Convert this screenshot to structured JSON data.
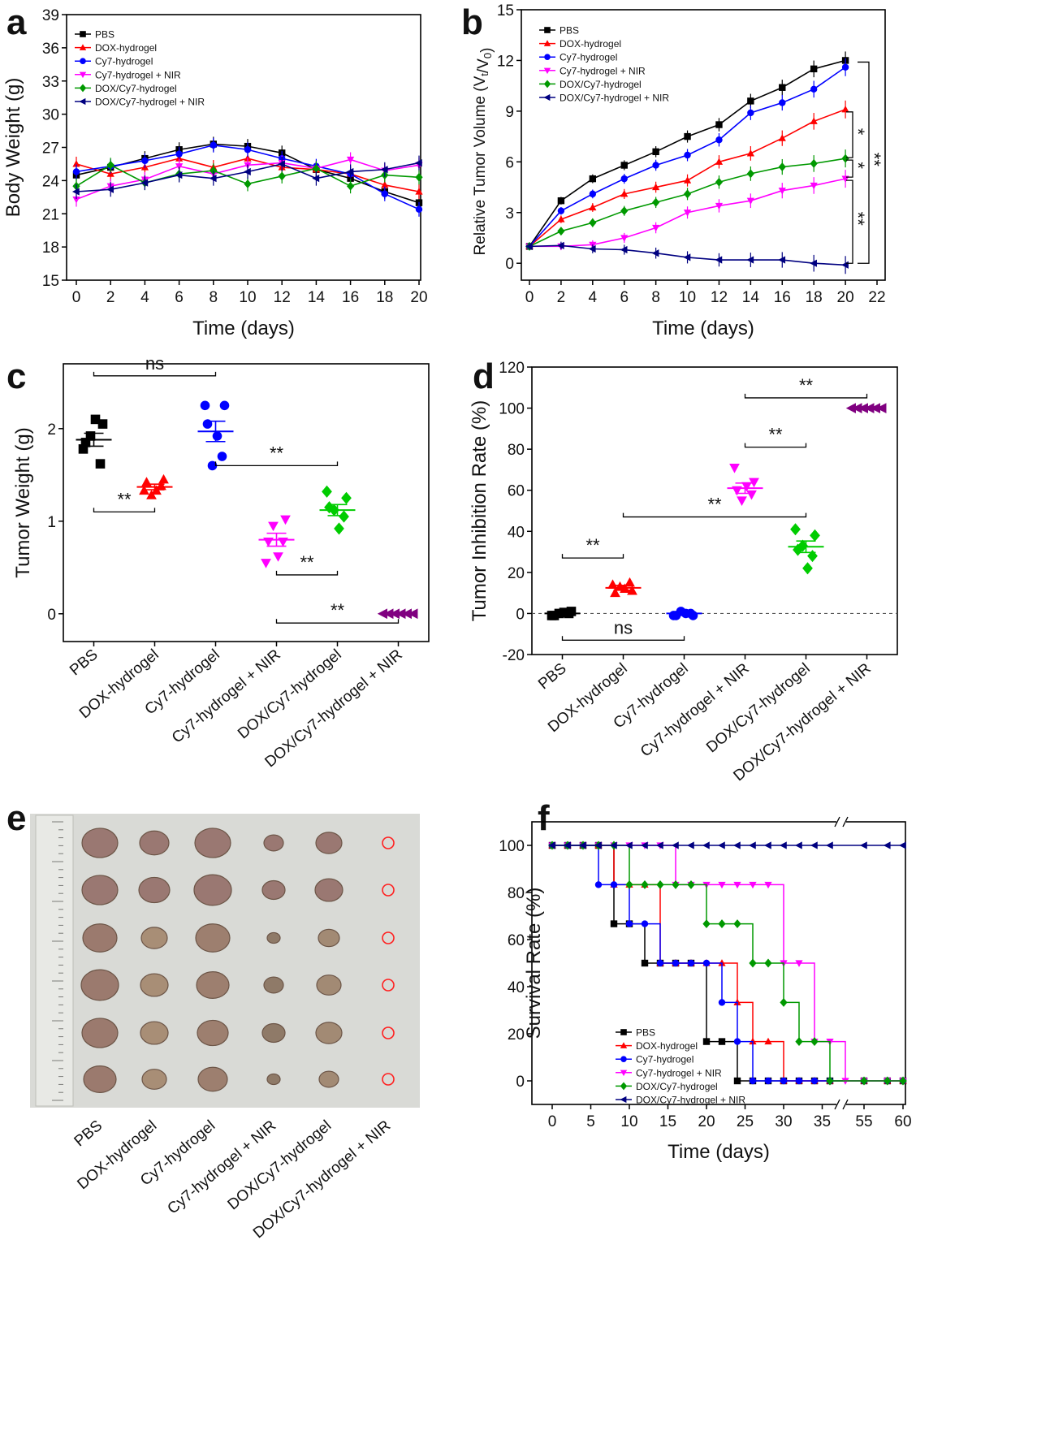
{
  "groups": [
    "PBS",
    "DOX-hydrogel",
    "Cy7-hydrogel",
    "Cy7-hydrogel + NIR",
    "DOX/Cy7-hydrogel",
    "DOX/Cy7-hydrogel + NIR"
  ],
  "group_colors": [
    "#000000",
    "#ff0000",
    "#0000ff",
    "#ff00ff",
    "#009900",
    "#000080"
  ],
  "chart_data": [
    {
      "panel": "a",
      "type": "line",
      "xlabel": "Time (days)",
      "ylabel": "Body Weight (g)",
      "xlim": [
        0,
        20
      ],
      "ylim": [
        15,
        39
      ],
      "xticks": [
        0,
        2,
        4,
        6,
        8,
        10,
        12,
        14,
        16,
        18,
        20
      ],
      "yticks": [
        15,
        18,
        21,
        24,
        27,
        30,
        33,
        36,
        39
      ],
      "legend_position": "top-left",
      "x": [
        0,
        2,
        4,
        6,
        8,
        10,
        12,
        14,
        16,
        18,
        20
      ],
      "series": [
        {
          "name": "PBS",
          "values": [
            24.5,
            25.2,
            26.0,
            26.8,
            27.3,
            27.1,
            26.5,
            25.0,
            24.2,
            23.0,
            22.0
          ]
        },
        {
          "name": "DOX-hydrogel",
          "values": [
            25.5,
            24.6,
            25.2,
            26.0,
            25.2,
            26.0,
            25.2,
            25.0,
            24.6,
            23.6,
            23.0
          ]
        },
        {
          "name": "Cy7-hydrogel",
          "values": [
            24.8,
            25.3,
            25.8,
            26.4,
            27.2,
            26.8,
            26.0,
            25.3,
            24.6,
            22.8,
            21.4
          ]
        },
        {
          "name": "Cy7-hydrogel + NIR",
          "values": [
            22.3,
            23.5,
            24.1,
            25.3,
            24.6,
            25.4,
            25.6,
            25.1,
            25.9,
            24.9,
            25.4
          ]
        },
        {
          "name": "DOX/Cy7-hydrogel",
          "values": [
            23.5,
            25.4,
            23.8,
            24.6,
            24.9,
            23.7,
            24.4,
            25.1,
            23.5,
            24.5,
            24.3
          ]
        },
        {
          "name": "DOX/Cy7-hydrogel + NIR",
          "values": [
            23.0,
            23.2,
            23.8,
            24.5,
            24.2,
            24.8,
            25.5,
            24.2,
            24.8,
            25.0,
            25.6
          ]
        }
      ]
    },
    {
      "panel": "b",
      "type": "line",
      "xlabel": "Time (days)",
      "ylabel": "Relative Tumor Volume (V",
      "ylabel_sub1": "t",
      "ylabel_mid": "/V",
      "ylabel_sub2": "0",
      "ylabel_end": ")",
      "xlim": [
        0,
        22
      ],
      "ylim": [
        -1,
        15
      ],
      "xticks": [
        0,
        2,
        4,
        6,
        8,
        10,
        12,
        14,
        16,
        18,
        20,
        22
      ],
      "yticks": [
        0,
        3,
        6,
        9,
        12,
        15
      ],
      "legend_position": "top-left",
      "x": [
        0,
        2,
        4,
        6,
        8,
        10,
        12,
        14,
        16,
        18,
        20
      ],
      "series": [
        {
          "name": "PBS",
          "values": [
            1.0,
            3.7,
            5.0,
            5.8,
            6.6,
            7.5,
            8.2,
            9.6,
            10.4,
            11.5,
            12.0
          ]
        },
        {
          "name": "DOX-hydrogel",
          "values": [
            1.0,
            2.6,
            3.3,
            4.1,
            4.5,
            4.9,
            6.0,
            6.5,
            7.4,
            8.4,
            9.1
          ]
        },
        {
          "name": "Cy7-hydrogel",
          "values": [
            1.0,
            3.1,
            4.1,
            5.0,
            5.8,
            6.4,
            7.3,
            8.9,
            9.5,
            10.3,
            11.6
          ]
        },
        {
          "name": "Cy7-hydrogel + NIR",
          "values": [
            1.0,
            1.0,
            1.1,
            1.5,
            2.1,
            3.0,
            3.4,
            3.7,
            4.3,
            4.6,
            5.0
          ]
        },
        {
          "name": "DOX/Cy7-hydrogel",
          "values": [
            1.0,
            1.9,
            2.4,
            3.1,
            3.6,
            4.1,
            4.8,
            5.3,
            5.7,
            5.9,
            6.2
          ]
        },
        {
          "name": "DOX/Cy7-hydrogel + NIR",
          "values": [
            1.0,
            1.05,
            0.85,
            0.8,
            0.6,
            0.35,
            0.2,
            0.2,
            0.2,
            0.0,
            -0.1
          ]
        }
      ],
      "significance": [
        {
          "text": "*",
          "from": 9.1,
          "to": 6.2
        },
        {
          "text": "*",
          "from": 6.2,
          "to": 5.0
        },
        {
          "text": "**",
          "from": 5.0,
          "to": -0.1
        },
        {
          "text": "**",
          "from": 12.0,
          "to": -0.1
        }
      ]
    },
    {
      "panel": "c",
      "type": "scatter",
      "ylabel": "Tumor Weight (g)",
      "ylim": [
        -0.3,
        2.7
      ],
      "yticks": [
        0,
        1,
        2
      ],
      "categories": [
        "PBS",
        "DOX-hydrogel",
        "Cy7-hydrogel",
        "Cy7-hydrogel + NIR",
        "DOX/Cy7-hydrogel",
        "DOX/Cy7-hydrogel + NIR"
      ],
      "points": [
        [
          1.78,
          2.05,
          1.92,
          1.62,
          1.85,
          2.1
        ],
        [
          1.33,
          1.45,
          1.28,
          1.38,
          1.42,
          1.33
        ],
        [
          2.25,
          2.25,
          1.6,
          1.7,
          2.05,
          1.92
        ],
        [
          0.55,
          1.02,
          0.95,
          0.78,
          0.78,
          0.62
        ],
        [
          1.32,
          1.25,
          1.12,
          1.05,
          1.15,
          0.92
        ],
        [
          0,
          0,
          0,
          0,
          0,
          0
        ]
      ],
      "means": [
        1.88,
        1.37,
        1.97,
        0.8,
        1.12,
        0.0
      ],
      "errors": [
        0.07,
        0.03,
        0.11,
        0.07,
        0.06,
        0.0
      ],
      "significance": [
        {
          "text": "ns",
          "from": 0,
          "to": 2,
          "y": 2.57
        },
        {
          "text": "**",
          "from": 0,
          "to": 1,
          "y": 1.1
        },
        {
          "text": "**",
          "from": 2,
          "to": 4,
          "y": 1.6
        },
        {
          "text": "**",
          "from": 3,
          "to": 4,
          "y": 0.42
        },
        {
          "text": "**",
          "from": 3,
          "to": 5,
          "y": -0.1
        }
      ]
    },
    {
      "panel": "d",
      "type": "scatter",
      "ylabel": "Tumor Inhibition Rate (%)",
      "ylim": [
        -20,
        120
      ],
      "yticks": [
        -20,
        0,
        20,
        40,
        60,
        80,
        100,
        120
      ],
      "reference_line": 0,
      "categories": [
        "PBS",
        "DOX-hydrogel",
        "Cy7-hydrogel",
        "Cy7-hydrogel + NIR",
        "DOX/Cy7-hydrogel",
        "DOX/Cy7-hydrogel + NIR"
      ],
      "points": [
        [
          -1,
          1,
          0,
          0,
          -1,
          0.5
        ],
        [
          14,
          11,
          13,
          15,
          10,
          12
        ],
        [
          -1,
          -1,
          1,
          0,
          -1,
          0
        ],
        [
          71,
          64,
          55,
          58,
          60,
          62
        ],
        [
          41,
          38,
          33,
          28,
          31,
          22
        ],
        [
          100,
          100,
          100,
          100,
          100,
          100
        ]
      ],
      "means": [
        0,
        12.5,
        0,
        61,
        32.5,
        100
      ],
      "errors": [
        0.5,
        1.2,
        0.5,
        2.5,
        2.8,
        0
      ],
      "significance": [
        {
          "text": "**",
          "from": 0,
          "to": 1,
          "y": 27
        },
        {
          "text": "ns",
          "from": 0,
          "to": 2,
          "y": -13
        },
        {
          "text": "**",
          "from": 1,
          "to": 4,
          "y": 47
        },
        {
          "text": "**",
          "from": 3,
          "to": 4,
          "y": 81
        },
        {
          "text": "**",
          "from": 3,
          "to": 5,
          "y": 105
        }
      ]
    },
    {
      "panel": "f",
      "type": "line",
      "xlabel": "Time (days)",
      "ylabel": "Survival Rate (%)",
      "ylim": [
        -10,
        110
      ],
      "yticks": [
        0,
        20,
        40,
        60,
        80,
        100
      ],
      "xtick_labels": [
        "0",
        "5",
        "10",
        "15",
        "20",
        "25",
        "30",
        "35",
        "55",
        "60"
      ],
      "axis_break": "between 35 and 55",
      "legend_position": "bottom-left",
      "series": [
        {
          "name": "PBS",
          "steps": [
            [
              0,
              100
            ],
            [
              2,
              100
            ],
            [
              4,
              100
            ],
            [
              6,
              100
            ],
            [
              8,
              66.7
            ],
            [
              10,
              66.7
            ],
            [
              12,
              50
            ],
            [
              14,
              50
            ],
            [
              16,
              50
            ],
            [
              18,
              50
            ],
            [
              20,
              16.7
            ],
            [
              22,
              16.7
            ],
            [
              24,
              0
            ],
            [
              26,
              0
            ],
            [
              28,
              0
            ],
            [
              30,
              0
            ],
            [
              32,
              0
            ],
            [
              34,
              0
            ],
            [
              36,
              0
            ],
            [
              55,
              0
            ],
            [
              58,
              0
            ],
            [
              60,
              0
            ]
          ]
        },
        {
          "name": "DOX-hydrogel",
          "steps": [
            [
              0,
              100
            ],
            [
              2,
              100
            ],
            [
              4,
              100
            ],
            [
              6,
              100
            ],
            [
              8,
              83.3
            ],
            [
              10,
              83.3
            ],
            [
              12,
              83.3
            ],
            [
              14,
              50
            ],
            [
              16,
              50
            ],
            [
              18,
              50
            ],
            [
              20,
              50
            ],
            [
              22,
              50
            ],
            [
              24,
              33.3
            ],
            [
              26,
              16.7
            ],
            [
              28,
              16.7
            ],
            [
              30,
              0
            ],
            [
              32,
              0
            ],
            [
              34,
              0
            ],
            [
              36,
              0
            ],
            [
              55,
              0
            ],
            [
              58,
              0
            ],
            [
              60,
              0
            ]
          ]
        },
        {
          "name": "Cy7-hydrogel",
          "steps": [
            [
              0,
              100
            ],
            [
              2,
              100
            ],
            [
              4,
              100
            ],
            [
              6,
              83.3
            ],
            [
              8,
              83.3
            ],
            [
              10,
              66.7
            ],
            [
              12,
              66.7
            ],
            [
              14,
              50
            ],
            [
              16,
              50
            ],
            [
              18,
              50
            ],
            [
              20,
              50
            ],
            [
              22,
              33.3
            ],
            [
              24,
              16.7
            ],
            [
              26,
              0
            ],
            [
              28,
              0
            ],
            [
              30,
              0
            ],
            [
              32,
              0
            ],
            [
              34,
              0
            ],
            [
              36,
              0
            ],
            [
              55,
              0
            ],
            [
              58,
              0
            ],
            [
              60,
              0
            ]
          ]
        },
        {
          "name": "Cy7-hydrogel + NIR",
          "steps": [
            [
              0,
              100
            ],
            [
              2,
              100
            ],
            [
              4,
              100
            ],
            [
              6,
              100
            ],
            [
              8,
              100
            ],
            [
              10,
              100
            ],
            [
              12,
              100
            ],
            [
              14,
              100
            ],
            [
              16,
              83.3
            ],
            [
              18,
              83.3
            ],
            [
              20,
              83.3
            ],
            [
              22,
              83.3
            ],
            [
              24,
              83.3
            ],
            [
              26,
              83.3
            ],
            [
              28,
              83.3
            ],
            [
              30,
              50
            ],
            [
              32,
              50
            ],
            [
              34,
              16.7
            ],
            [
              36,
              16.7
            ],
            [
              38,
              0
            ],
            [
              55,
              0
            ],
            [
              58,
              0
            ],
            [
              60,
              0
            ]
          ]
        },
        {
          "name": "DOX/Cy7-hydrogel",
          "steps": [
            [
              0,
              100
            ],
            [
              2,
              100
            ],
            [
              4,
              100
            ],
            [
              6,
              100
            ],
            [
              8,
              100
            ],
            [
              10,
              83.3
            ],
            [
              12,
              83.3
            ],
            [
              14,
              83.3
            ],
            [
              16,
              83.3
            ],
            [
              18,
              83.3
            ],
            [
              20,
              66.7
            ],
            [
              22,
              66.7
            ],
            [
              24,
              66.7
            ],
            [
              26,
              50
            ],
            [
              28,
              50
            ],
            [
              30,
              33.3
            ],
            [
              32,
              16.7
            ],
            [
              34,
              16.7
            ],
            [
              36,
              0
            ],
            [
              55,
              0
            ],
            [
              58,
              0
            ],
            [
              60,
              0
            ]
          ]
        },
        {
          "name": "DOX/Cy7-hydrogel + NIR",
          "steps": [
            [
              0,
              100
            ],
            [
              2,
              100
            ],
            [
              4,
              100
            ],
            [
              6,
              100
            ],
            [
              8,
              100
            ],
            [
              10,
              100
            ],
            [
              12,
              100
            ],
            [
              14,
              100
            ],
            [
              16,
              100
            ],
            [
              18,
              100
            ],
            [
              20,
              100
            ],
            [
              22,
              100
            ],
            [
              24,
              100
            ],
            [
              26,
              100
            ],
            [
              28,
              100
            ],
            [
              30,
              100
            ],
            [
              32,
              100
            ],
            [
              34,
              100
            ],
            [
              36,
              100
            ],
            [
              55,
              100
            ],
            [
              58,
              100
            ],
            [
              60,
              100
            ]
          ]
        }
      ]
    }
  ],
  "panel_e": {
    "panel": "e",
    "type": "image",
    "columns": [
      "PBS",
      "DOX-hydrogel",
      "Cy7-hydrogel",
      "Cy7-hydrogel + NIR",
      "DOX/Cy7-hydrogel",
      "DOX/Cy7-hydrogel + NIR"
    ],
    "rows": 6
  }
}
